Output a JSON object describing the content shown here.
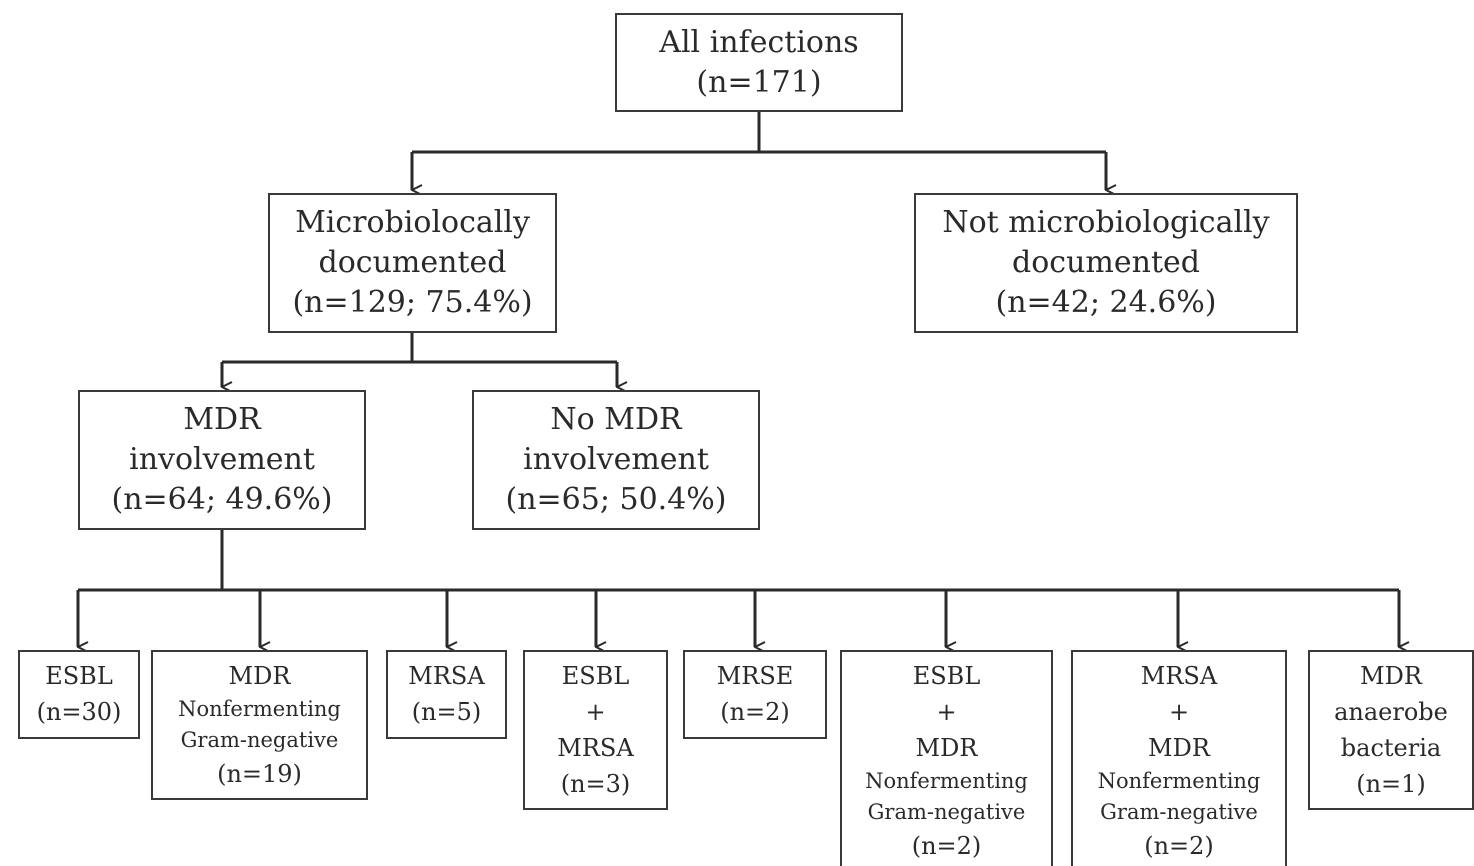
{
  "nodes": {
    "all": [
      "All infections",
      "(n=171)"
    ],
    "micro": [
      "Microbiolocally",
      "documented",
      "(n=129; 75.4%)"
    ],
    "notmicro": [
      "Not microbiologically",
      "documented",
      "(n=42; 24.6%)"
    ],
    "mdr": [
      "MDR",
      "involvement",
      "(n=64; 49.6%)"
    ],
    "nomdr": [
      "No MDR",
      "involvement",
      "(n=65; 50.4%)"
    ],
    "esbl": [
      "ESBL",
      "(n=30)"
    ],
    "mdrnf": [
      "MDR",
      "Nonfermenting",
      "Gram-negative",
      "(n=19)"
    ],
    "mrsa": [
      "MRSA",
      "(n=5)"
    ],
    "esbl_mrsa": [
      "ESBL",
      "+",
      "MRSA",
      "(n=3)"
    ],
    "mrse": [
      "MRSE",
      "(n=2)"
    ],
    "esbl_mdrnf": [
      "ESBL",
      "+",
      "MDR",
      "Nonfermenting",
      "Gram-negative",
      "(n=2)"
    ],
    "mrsa_mdrnf": [
      "MRSA",
      "+",
      "MDR",
      "Nonfermenting",
      "Gram-negative",
      "(n=2)"
    ],
    "anaerobe": [
      "MDR",
      "anaerobe",
      "bacteria",
      "(n=1)"
    ]
  }
}
